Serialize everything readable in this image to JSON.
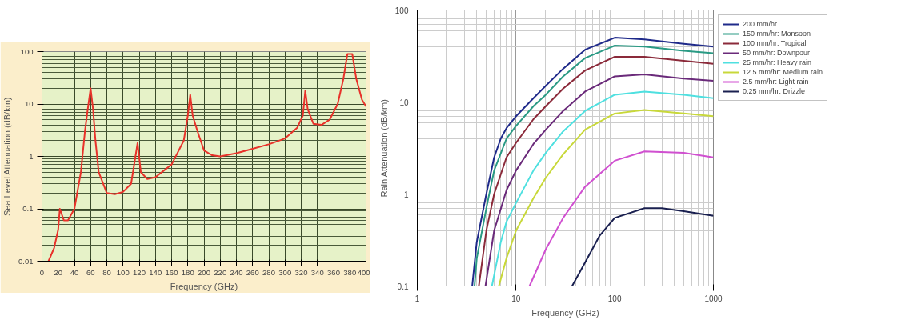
{
  "chart_data": [
    {
      "type": "line",
      "xlabel": "Frequency (GHz)",
      "ylabel": "Sea Level Attenuation (dB/km)",
      "log": "y",
      "grid": true,
      "xlim": [
        0,
        400
      ],
      "ylim": [
        0.01,
        100
      ],
      "xticks": [
        0,
        20,
        40,
        60,
        80,
        100,
        120,
        140,
        160,
        180,
        200,
        220,
        240,
        260,
        280,
        300,
        320,
        340,
        360,
        380,
        400
      ],
      "yticks": [
        0.01,
        0.1,
        1,
        10,
        100
      ],
      "series": [
        {
          "color": "#e8322a",
          "x": [
            8,
            15,
            20,
            22,
            27,
            32,
            40,
            48,
            53,
            56,
            60,
            63,
            66,
            70,
            80,
            90,
            100,
            110,
            118,
            122,
            130,
            140,
            160,
            175,
            180,
            183,
            186,
            192,
            200,
            210,
            220,
            240,
            260,
            280,
            300,
            315,
            322,
            325,
            328,
            335,
            345,
            355,
            365,
            372,
            377,
            383,
            388,
            395,
            400
          ],
          "values": [
            0.01,
            0.018,
            0.04,
            0.1,
            0.06,
            0.06,
            0.1,
            0.5,
            3,
            7,
            20,
            8,
            2,
            0.5,
            0.2,
            0.19,
            0.21,
            0.3,
            1.8,
            0.5,
            0.37,
            0.4,
            0.7,
            2,
            6,
            15,
            6,
            3,
            1.3,
            1.05,
            1.0,
            1.15,
            1.4,
            1.7,
            2.2,
            3.5,
            6,
            18,
            8,
            4.2,
            4,
            5,
            10,
            30,
            90,
            90,
            30,
            12,
            9
          ]
        }
      ]
    },
    {
      "type": "line",
      "xlabel": "Frequency (GHz)",
      "ylabel": "Rain Attenuation (dB/km)",
      "log": "xy",
      "grid": true,
      "legend": "right",
      "xlim": [
        1,
        1000
      ],
      "ylim": [
        0.1,
        100
      ],
      "xticks": [
        1,
        10,
        100,
        1000
      ],
      "yticks": [
        0.1,
        1,
        10,
        100
      ],
      "series": [
        {
          "name": "200 mm/hr",
          "color": "#1f2a8a",
          "x": [
            3.6,
            4,
            5,
            6,
            7,
            8,
            10,
            15,
            20,
            30,
            50,
            100,
            200,
            500,
            1000
          ],
          "values": [
            0.1,
            0.3,
            1.0,
            2.5,
            4,
            5.2,
            7,
            11,
            15,
            23,
            37,
            50,
            48,
            43,
            40
          ]
        },
        {
          "name": "150 mm/hr: Monsoon",
          "color": "#2a9a84",
          "x": [
            3.8,
            4,
            5,
            6,
            8,
            10,
            15,
            20,
            30,
            50,
            100,
            200,
            500,
            1000
          ],
          "values": [
            0.1,
            0.2,
            0.7,
            1.8,
            4,
            5.5,
            9,
            12,
            19,
            30,
            41,
            40,
            36,
            34
          ]
        },
        {
          "name": "100 mm/hr: Tropical",
          "color": "#8b2a3a",
          "x": [
            4.2,
            5,
            6,
            8,
            10,
            15,
            20,
            30,
            50,
            100,
            200,
            500,
            1000
          ],
          "values": [
            0.1,
            0.4,
            1,
            2.5,
            3.6,
            6.5,
            9,
            14,
            22,
            31,
            31,
            28,
            26
          ]
        },
        {
          "name": "50 mm/hr: Downpour",
          "color": "#6a2a7a",
          "x": [
            4.9,
            6,
            8,
            10,
            15,
            20,
            30,
            50,
            100,
            200,
            500,
            1000
          ],
          "values": [
            0.1,
            0.4,
            1.1,
            1.8,
            3.5,
            5,
            8,
            13,
            19,
            20,
            18,
            17
          ]
        },
        {
          "name": "25 mm/hr: Heavy rain",
          "color": "#4fe0e0",
          "x": [
            5.7,
            7,
            8,
            10,
            15,
            20,
            30,
            50,
            100,
            200,
            500,
            1000
          ],
          "values": [
            0.1,
            0.3,
            0.5,
            0.8,
            1.8,
            2.8,
            4.8,
            8,
            12,
            13,
            12,
            11
          ]
        },
        {
          "name": "12.5 mm/hr: Medium rain",
          "color": "#c8d83a",
          "x": [
            6.7,
            8,
            10,
            15,
            20,
            30,
            50,
            100,
            200,
            500,
            1000
          ],
          "values": [
            0.1,
            0.2,
            0.4,
            0.9,
            1.5,
            2.7,
            5,
            7.5,
            8.2,
            7.5,
            7
          ]
        },
        {
          "name": "2.5 mm/hr: Light rain",
          "color": "#d050d0",
          "x": [
            13.7,
            20,
            30,
            50,
            100,
            200,
            500,
            1000
          ],
          "values": [
            0.1,
            0.25,
            0.55,
            1.2,
            2.3,
            2.9,
            2.8,
            2.5
          ]
        },
        {
          "name": "0.25 mm/hr: Drizzle",
          "color": "#1a2050",
          "x": [
            37,
            50,
            70,
            100,
            200,
            300,
            500,
            1000
          ],
          "values": [
            0.1,
            0.18,
            0.35,
            0.55,
            0.7,
            0.7,
            0.65,
            0.58
          ]
        }
      ]
    }
  ]
}
